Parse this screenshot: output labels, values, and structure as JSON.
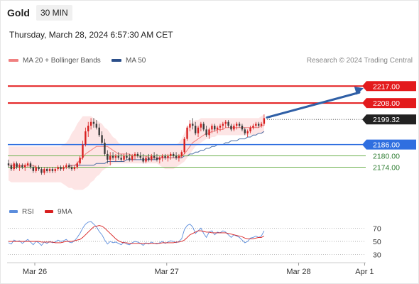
{
  "header": {
    "instrument": "Gold",
    "interval": "30 MIN",
    "datetime": "Thursday, March 28, 2024 6:57:30 AM CET"
  },
  "legend": {
    "ma20_label": "MA 20 + Bollinger Bands",
    "ma50_label": "MA 50",
    "credit": "Research © 2024 Trading Central"
  },
  "rsi_legend": {
    "rsi_label": "RSI",
    "ma_label": "9MA"
  },
  "colors": {
    "up_candle": "#d81e1e",
    "down_candle": "#3a3a3a",
    "bollinger_fill": "#fde0e0",
    "ma20": "#f08080",
    "ma50": "#4a6fa5",
    "resistance": "#e31a1c",
    "support": "#2f6fe0",
    "minor_support": "#6ab04c",
    "current_price": "#222222",
    "arrow": "#2f5fa6",
    "rsi": "#5b8ddc",
    "rsi_ma": "#d81e1e"
  },
  "chart_data": [
    {
      "type": "candlestick",
      "title": "Gold",
      "x_axis": {
        "tick_labels": [
          "Mar 26",
          "Mar 27",
          "Mar 28",
          "Apr 1"
        ],
        "tick_index": [
          0,
          48,
          96,
          120
        ]
      },
      "ylim": [
        2158,
        2225
      ],
      "candles": [
        [
          2176,
          2178,
          2174,
          2175
        ],
        [
          2175,
          2176,
          2172,
          2173
        ],
        [
          2173,
          2177,
          2172,
          2176
        ],
        [
          2176,
          2177,
          2173,
          2174
        ],
        [
          2174,
          2176,
          2172,
          2175
        ],
        [
          2175,
          2176,
          2173,
          2174
        ],
        [
          2174,
          2176,
          2172,
          2175
        ],
        [
          2175,
          2177,
          2174,
          2176
        ],
        [
          2176,
          2177,
          2173,
          2174
        ],
        [
          2174,
          2175,
          2171,
          2172
        ],
        [
          2172,
          2175,
          2171,
          2174
        ],
        [
          2174,
          2175,
          2172,
          2173
        ],
        [
          2173,
          2174,
          2170,
          2171
        ],
        [
          2171,
          2174,
          2170,
          2173
        ],
        [
          2173,
          2174,
          2171,
          2172
        ],
        [
          2172,
          2174,
          2171,
          2173
        ],
        [
          2173,
          2174,
          2171,
          2172
        ],
        [
          2172,
          2174,
          2171,
          2173
        ],
        [
          2173,
          2175,
          2172,
          2174
        ],
        [
          2174,
          2175,
          2172,
          2173
        ],
        [
          2173,
          2175,
          2172,
          2174
        ],
        [
          2174,
          2176,
          2173,
          2175
        ],
        [
          2175,
          2176,
          2173,
          2174
        ],
        [
          2174,
          2175,
          2172,
          2173
        ],
        [
          2173,
          2175,
          2172,
          2174
        ],
        [
          2174,
          2177,
          2173,
          2176
        ],
        [
          2176,
          2180,
          2175,
          2179
        ],
        [
          2179,
          2188,
          2178,
          2186
        ],
        [
          2186,
          2195,
          2185,
          2193
        ],
        [
          2193,
          2198,
          2190,
          2196
        ],
        [
          2196,
          2200,
          2194,
          2198
        ],
        [
          2198,
          2200,
          2195,
          2197
        ],
        [
          2197,
          2199,
          2194,
          2195
        ],
        [
          2195,
          2197,
          2190,
          2191
        ],
        [
          2191,
          2193,
          2186,
          2187
        ],
        [
          2187,
          2189,
          2180,
          2181
        ],
        [
          2181,
          2183,
          2176,
          2178
        ],
        [
          2178,
          2182,
          2175,
          2180
        ],
        [
          2180,
          2182,
          2178,
          2179
        ],
        [
          2179,
          2181,
          2177,
          2180
        ],
        [
          2180,
          2182,
          2178,
          2179
        ],
        [
          2179,
          2181,
          2177,
          2178
        ],
        [
          2178,
          2181,
          2177,
          2180
        ],
        [
          2180,
          2182,
          2178,
          2179
        ],
        [
          2179,
          2181,
          2177,
          2178
        ],
        [
          2178,
          2181,
          2177,
          2180
        ],
        [
          2180,
          2182,
          2178,
          2181
        ],
        [
          2181,
          2182,
          2179,
          2180
        ],
        [
          2180,
          2182,
          2178,
          2179
        ],
        [
          2179,
          2181,
          2176,
          2177
        ],
        [
          2177,
          2180,
          2176,
          2179
        ],
        [
          2179,
          2181,
          2177,
          2178
        ],
        [
          2178,
          2181,
          2177,
          2180
        ],
        [
          2180,
          2182,
          2178,
          2179
        ],
        [
          2179,
          2181,
          2177,
          2178
        ],
        [
          2178,
          2180,
          2176,
          2179
        ],
        [
          2179,
          2181,
          2177,
          2180
        ],
        [
          2180,
          2181,
          2178,
          2179
        ],
        [
          2179,
          2181,
          2177,
          2180
        ],
        [
          2180,
          2182,
          2178,
          2181
        ],
        [
          2181,
          2182,
          2179,
          2180
        ],
        [
          2180,
          2182,
          2178,
          2179
        ],
        [
          2179,
          2181,
          2177,
          2180
        ],
        [
          2180,
          2183,
          2179,
          2182
        ],
        [
          2182,
          2190,
          2181,
          2189
        ],
        [
          2189,
          2196,
          2188,
          2195
        ],
        [
          2195,
          2199,
          2193,
          2197
        ],
        [
          2197,
          2200,
          2194,
          2196
        ],
        [
          2196,
          2198,
          2191,
          2192
        ],
        [
          2192,
          2196,
          2190,
          2195
        ],
        [
          2195,
          2198,
          2193,
          2197
        ],
        [
          2197,
          2198,
          2193,
          2194
        ],
        [
          2194,
          2196,
          2190,
          2191
        ],
        [
          2191,
          2195,
          2189,
          2194
        ],
        [
          2194,
          2197,
          2192,
          2196
        ],
        [
          2196,
          2197,
          2193,
          2194
        ],
        [
          2194,
          2196,
          2192,
          2195
        ],
        [
          2195,
          2197,
          2193,
          2196
        ],
        [
          2196,
          2198,
          2194,
          2197
        ],
        [
          2197,
          2199,
          2195,
          2198
        ],
        [
          2198,
          2199,
          2195,
          2196
        ],
        [
          2196,
          2197,
          2193,
          2194
        ],
        [
          2194,
          2197,
          2193,
          2196
        ],
        [
          2196,
          2198,
          2194,
          2197
        ],
        [
          2197,
          2198,
          2195,
          2196
        ],
        [
          2196,
          2197,
          2193,
          2194
        ],
        [
          2194,
          2195,
          2191,
          2192
        ],
        [
          2192,
          2194,
          2190,
          2193
        ],
        [
          2193,
          2196,
          2192,
          2195
        ],
        [
          2195,
          2197,
          2194,
          2196
        ],
        [
          2196,
          2198,
          2195,
          2197
        ],
        [
          2197,
          2198,
          2195,
          2196
        ],
        [
          2196,
          2198,
          2195,
          2197
        ],
        [
          2197,
          2202,
          2196,
          2200
        ]
      ],
      "bollinger": {
        "upper": [
          2185,
          2185,
          2185,
          2185,
          2185,
          2185,
          2185,
          2185,
          2185,
          2185,
          2185,
          2185,
          2185,
          2185,
          2185,
          2185,
          2185,
          2185,
          2185,
          2185,
          2186,
          2187,
          2189,
          2192,
          2194,
          2197,
          2199,
          2201,
          2201,
          2201,
          2201,
          2200,
          2199,
          2198,
          2197,
          2195,
          2194,
          2192,
          2190,
          2189,
          2187,
          2186,
          2186,
          2186,
          2186,
          2186,
          2186,
          2186,
          2186,
          2186,
          2186,
          2186,
          2186,
          2186,
          2186,
          2186,
          2186,
          2186,
          2186,
          2186,
          2186,
          2186,
          2187,
          2189,
          2192,
          2195,
          2197,
          2198,
          2199,
          2199,
          2200,
          2200,
          2200,
          2200,
          2200,
          2200,
          2200,
          2200,
          2200,
          2200,
          2200,
          2200,
          2200,
          2200,
          2200,
          2200,
          2200,
          2200,
          2200,
          2200,
          2200,
          2200,
          2201,
          2202
        ],
        "lower": [
          2167,
          2166,
          2166,
          2166,
          2166,
          2166,
          2166,
          2166,
          2166,
          2166,
          2166,
          2166,
          2166,
          2166,
          2166,
          2166,
          2166,
          2166,
          2166,
          2166,
          2165,
          2164,
          2163,
          2163,
          2162,
          2162,
          2162,
          2162,
          2163,
          2164,
          2166,
          2167,
          2169,
          2170,
          2172,
          2173,
          2174,
          2175,
          2176,
          2176,
          2176,
          2176,
          2176,
          2176,
          2176,
          2176,
          2176,
          2176,
          2176,
          2176,
          2176,
          2176,
          2176,
          2176,
          2176,
          2175,
          2174,
          2173,
          2173,
          2173,
          2173,
          2174,
          2175,
          2176,
          2177,
          2179,
          2181,
          2183,
          2185,
          2186,
          2187,
          2188,
          2189,
          2189,
          2190,
          2190,
          2191,
          2191,
          2191,
          2191,
          2191,
          2191,
          2191,
          2191,
          2191,
          2191,
          2191,
          2191,
          2191,
          2191,
          2191,
          2192,
          2192,
          2192
        ]
      },
      "ma20": [
        2175,
        2175,
        2175,
        2175,
        2175,
        2175,
        2175,
        2175,
        2175,
        2175,
        2174,
        2174,
        2174,
        2174,
        2174,
        2174,
        2174,
        2174,
        2174,
        2174,
        2174,
        2174,
        2174,
        2175,
        2175,
        2176,
        2178,
        2179,
        2181,
        2182,
        2183,
        2184,
        2185,
        2185,
        2185,
        2185,
        2185,
        2184,
        2183,
        2182,
        2181,
        2181,
        2181,
        2181,
        2181,
        2180,
        2180,
        2180,
        2180,
        2180,
        2180,
        2179,
        2179,
        2179,
        2179,
        2179,
        2179,
        2179,
        2179,
        2179,
        2179,
        2179,
        2179,
        2180,
        2181,
        2183,
        2185,
        2187,
        2188,
        2189,
        2190,
        2191,
        2192,
        2192,
        2193,
        2193,
        2194,
        2194,
        2194,
        2195,
        2195,
        2195,
        2195,
        2195,
        2195,
        2195,
        2195,
        2195,
        2195,
        2195,
        2195,
        2195,
        2196,
        2196
      ],
      "ma50": [
        null,
        null,
        null,
        null,
        null,
        null,
        null,
        null,
        null,
        null,
        null,
        null,
        null,
        null,
        null,
        null,
        null,
        null,
        null,
        null,
        null,
        null,
        2175,
        2175,
        2175,
        2175,
        2175,
        2175,
        2175,
        2175,
        2175,
        2175,
        2176,
        2176,
        2176,
        2176,
        2177,
        2177,
        2177,
        2177,
        2177,
        2177,
        2177,
        2178,
        2178,
        2178,
        2178,
        2178,
        2178,
        2178,
        2178,
        2178,
        2178,
        2178,
        2178,
        2179,
        2179,
        2179,
        2179,
        2179,
        2179,
        2179,
        2179,
        2179,
        2180,
        2180,
        2181,
        2181,
        2182,
        2182,
        2183,
        2183,
        2184,
        2184,
        2185,
        2185,
        2186,
        2186,
        2186,
        2187,
        2187,
        2188,
        2188,
        2188,
        2189,
        2189,
        2189,
        2190,
        2190,
        2191,
        2191,
        2192,
        2192,
        2193
      ],
      "levels": [
        {
          "value": 2217.0,
          "label": "2217.00",
          "kind": "resistance"
        },
        {
          "value": 2208.0,
          "label": "2208.00",
          "kind": "resistance"
        },
        {
          "value": 2199.32,
          "label": "2199.32",
          "kind": "current"
        },
        {
          "value": 2186.0,
          "label": "2186.00",
          "kind": "support"
        },
        {
          "value": 2180.0,
          "label": "2180.00",
          "kind": "minor_support"
        },
        {
          "value": 2174.0,
          "label": "2174.00",
          "kind": "minor_support"
        }
      ],
      "arrow": {
        "from_value": 2200,
        "to_value": 2217
      }
    },
    {
      "type": "line",
      "title": "RSI",
      "ylim": [
        20,
        80
      ],
      "yticks": [
        70,
        50,
        30
      ],
      "series": [
        {
          "name": "RSI",
          "values": [
            48,
            46,
            52,
            50,
            51,
            47,
            50,
            53,
            49,
            45,
            50,
            48,
            44,
            49,
            47,
            50,
            48,
            49,
            52,
            50,
            51,
            53,
            49,
            48,
            51,
            56,
            62,
            70,
            76,
            79,
            80,
            76,
            72,
            65,
            60,
            52,
            46,
            50,
            48,
            49,
            47,
            45,
            49,
            46,
            45,
            48,
            50,
            49,
            47,
            44,
            48,
            46,
            49,
            47,
            46,
            48,
            50,
            47,
            49,
            51,
            50,
            48,
            50,
            54,
            68,
            74,
            76,
            72,
            62,
            66,
            70,
            62,
            56,
            64,
            66,
            60,
            64,
            63,
            66,
            64,
            60,
            56,
            60,
            58,
            56,
            52,
            48,
            50,
            55,
            56,
            58,
            56,
            58,
            66
          ]
        },
        {
          "name": "9MA",
          "values": [
            50,
            50,
            50,
            50,
            50,
            50,
            50,
            50,
            50,
            50,
            50,
            50,
            49,
            49,
            49,
            49,
            49,
            48,
            48,
            48,
            49,
            50,
            50,
            50,
            51,
            52,
            53,
            56,
            60,
            64,
            68,
            72,
            73,
            74,
            73,
            70,
            66,
            62,
            58,
            54,
            51,
            49,
            48,
            48,
            47,
            47,
            47,
            47,
            47,
            47,
            47,
            47,
            47,
            47,
            47,
            47,
            48,
            48,
            48,
            48,
            48,
            49,
            49,
            50,
            52,
            56,
            60,
            62,
            64,
            66,
            66,
            65,
            64,
            64,
            63,
            63,
            63,
            63,
            63,
            63,
            62,
            61,
            60,
            59,
            58,
            57,
            55,
            54,
            54,
            54,
            55,
            56,
            56,
            58
          ]
        }
      ]
    }
  ]
}
